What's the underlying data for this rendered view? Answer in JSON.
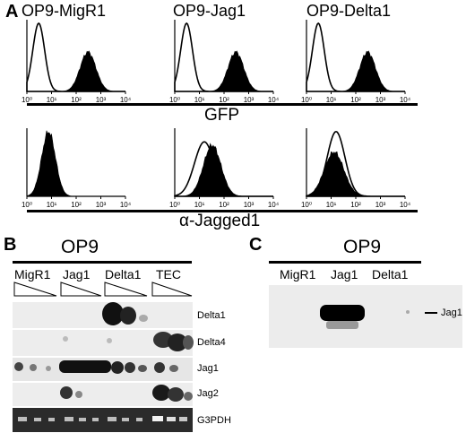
{
  "panel_A": {
    "label": "A",
    "columns": [
      "OP9-MigR1",
      "OP9-Jag1",
      "OP9-Delta1"
    ],
    "row1_label": "GFP",
    "row2_label": "α-Jagged1",
    "tick_labels": [
      "10⁰",
      "10¹",
      "10²",
      "10³",
      "10⁴"
    ]
  },
  "panel_B": {
    "label": "B",
    "title": "OP9",
    "lanes": [
      "MigR1",
      "Jag1",
      "Delta1",
      "TEC"
    ],
    "rows": [
      "Delta1",
      "Delta4",
      "Jag1",
      "Jag2",
      "G3PDH"
    ]
  },
  "panel_C": {
    "label": "C",
    "title": "OP9",
    "lanes": [
      "MigR1",
      "Jag1",
      "Delta1"
    ],
    "band_label": "Jag1"
  },
  "colors": {
    "ink": "#000000",
    "blot_bg": "#ececec",
    "gel_bg": "#2a2a2a"
  }
}
